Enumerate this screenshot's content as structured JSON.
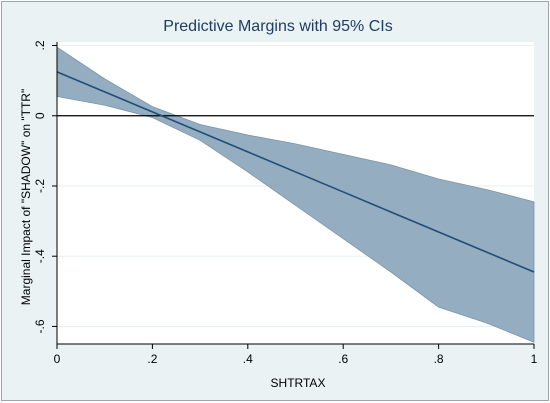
{
  "chart_data": {
    "type": "line",
    "title": "Predictive Margins with 95% CIs",
    "xlabel": "SHTRTAX",
    "ylabel": "Marginal Impact of \"SHADOW\" on \"TTR\"",
    "xlim": [
      0,
      1
    ],
    "ylim": [
      -0.65,
      0.21
    ],
    "x_ticks": [
      0,
      0.2,
      0.4,
      0.6,
      0.8,
      1
    ],
    "x_tick_labels": [
      "0",
      ".2",
      ".4",
      ".6",
      ".8",
      "1"
    ],
    "y_ticks": [
      0.2,
      0,
      -0.2,
      -0.4,
      -0.6
    ],
    "y_tick_labels": [
      ".2",
      "0",
      "-.2",
      "-.4",
      "-.6"
    ],
    "reference_line_y": 0,
    "grid": true,
    "series": [
      {
        "x": [
          0,
          0.1,
          0.2,
          0.3,
          0.4,
          0.5,
          0.6,
          0.7,
          0.8,
          0.9,
          1
        ],
        "values": [
          0.125,
          0.068,
          0.011,
          -0.046,
          -0.103,
          -0.16,
          -0.217,
          -0.274,
          -0.331,
          -0.388,
          -0.445
        ],
        "ci_lower": [
          0.055,
          0.03,
          -0.005,
          -0.07,
          -0.16,
          -0.255,
          -0.35,
          -0.445,
          -0.545,
          -0.59,
          -0.645
        ],
        "ci_upper": [
          0.195,
          0.105,
          0.026,
          -0.025,
          -0.055,
          -0.08,
          -0.11,
          -0.14,
          -0.18,
          -0.21,
          -0.245
        ]
      }
    ],
    "colors": {
      "line": "#1f4e79",
      "band": "#8aa4b9",
      "reference": "#000000",
      "grid": "#ffffff",
      "plot_background": "#ffffff",
      "outer_background": "#eaf2f3",
      "title": "#1e3c64"
    }
  }
}
